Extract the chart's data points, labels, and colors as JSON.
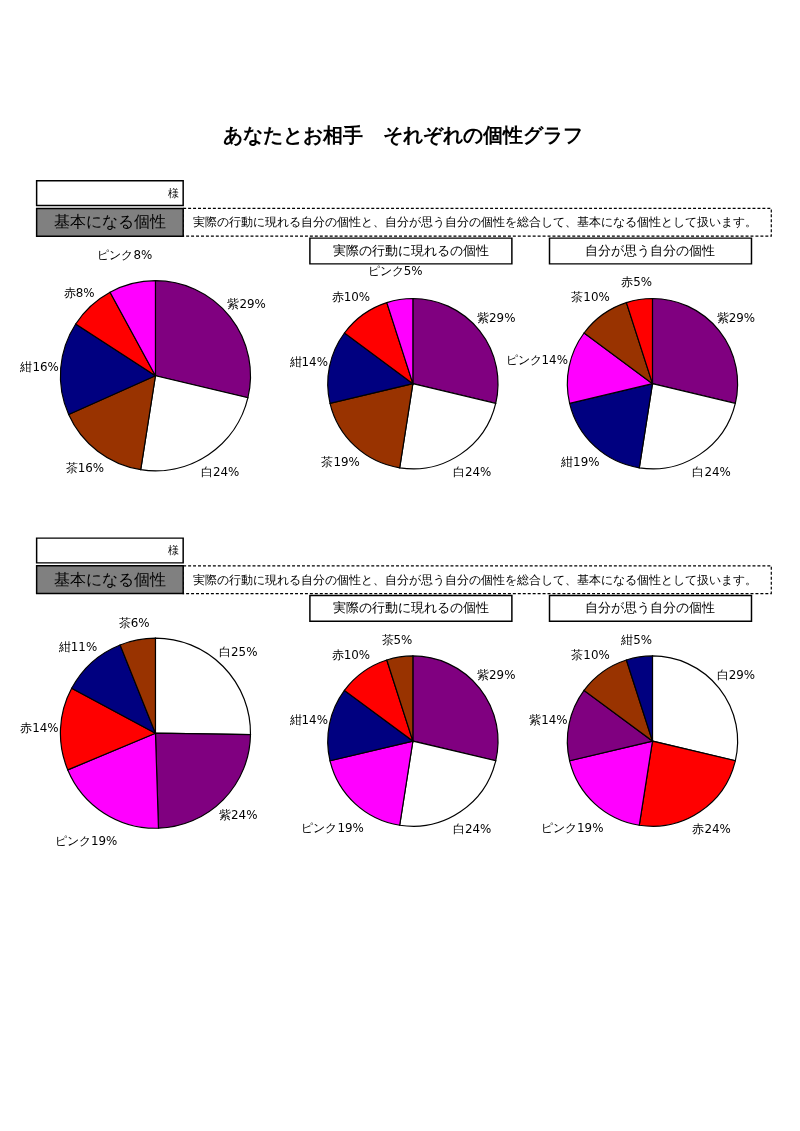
{
  "chart_data": [
    {
      "type": "other",
      "title": "あなたとお相手　それぞれの個性グラフ"
    },
    {
      "type": "pie",
      "title": "基本になる個性",
      "subtitle": "実際の行動に現れる自分の個性と、自分が思う自分の個性を総合して、基本になる個性として扱います。",
      "annotations": [
        "様"
      ],
      "categories": [
        "紫",
        "白",
        "茶",
        "紺",
        "赤",
        "ピンク"
      ],
      "values": [
        29,
        24,
        16,
        16,
        8,
        8
      ],
      "value_labels": [
        "29%",
        "24%",
        "16%",
        "16%",
        "8%",
        "8%"
      ],
      "colors": [
        "#800080",
        "#ffffff",
        "#993300",
        "#000080",
        "#ff0000",
        "#ff00ff"
      ]
    },
    {
      "type": "pie",
      "title": "実際の行動に現れるの個性",
      "categories": [
        "紫",
        "白",
        "茶",
        "紺",
        "赤",
        "ピンク"
      ],
      "values": [
        29,
        24,
        19,
        14,
        10,
        5
      ],
      "value_labels": [
        "29%",
        "24%",
        "19%",
        "14%",
        "10%",
        "5%"
      ],
      "colors": [
        "#800080",
        "#ffffff",
        "#993300",
        "#000080",
        "#ff0000",
        "#ff00ff"
      ]
    },
    {
      "type": "pie",
      "title": "自分が思う自分の個性",
      "categories": [
        "紫",
        "白",
        "紺",
        "ピンク",
        "茶",
        "赤"
      ],
      "values": [
        29,
        24,
        19,
        14,
        10,
        5
      ],
      "value_labels": [
        "29%",
        "24%",
        "19%",
        "14%",
        "10%",
        "5%"
      ],
      "colors": [
        "#800080",
        "#ffffff",
        "#000080",
        "#ff00ff",
        "#993300",
        "#ff0000"
      ]
    },
    {
      "type": "pie",
      "title": "基本になる個性",
      "subtitle": "実際の行動に現れる自分の個性と、自分が思う自分の個性を総合して、基本になる個性として扱います。",
      "annotations": [
        "様"
      ],
      "categories": [
        "白",
        "紫",
        "ピンク",
        "赤",
        "紺",
        "茶"
      ],
      "values": [
        25,
        24,
        19,
        14,
        11,
        6
      ],
      "value_labels": [
        "25%",
        "24%",
        "19%",
        "14%",
        "11%",
        "6%"
      ],
      "colors": [
        "#ffffff",
        "#800080",
        "#ff00ff",
        "#ff0000",
        "#000080",
        "#993300"
      ]
    },
    {
      "type": "pie",
      "title": "実際の行動に現れるの個性",
      "categories": [
        "紫",
        "白",
        "ピンク",
        "紺",
        "赤",
        "茶"
      ],
      "values": [
        29,
        24,
        19,
        14,
        10,
        5
      ],
      "value_labels": [
        "29%",
        "24%",
        "19%",
        "14%",
        "10%",
        "5%"
      ],
      "colors": [
        "#800080",
        "#ffffff",
        "#ff00ff",
        "#000080",
        "#ff0000",
        "#993300"
      ]
    },
    {
      "type": "pie",
      "title": "自分が思う自分の個性",
      "categories": [
        "白",
        "赤",
        "ピンク",
        "紫",
        "茶",
        "紺"
      ],
      "values": [
        29,
        24,
        19,
        14,
        10,
        5
      ],
      "value_labels": [
        "29%",
        "24%",
        "19%",
        "14%",
        "10%",
        "5%"
      ],
      "colors": [
        "#ffffff",
        "#ff0000",
        "#ff00ff",
        "#800080",
        "#993300",
        "#000080"
      ]
    }
  ]
}
